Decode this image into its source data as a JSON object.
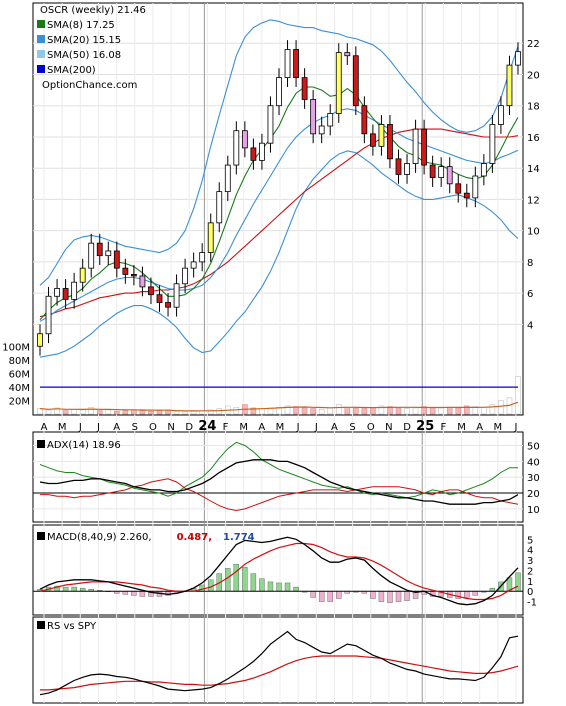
{
  "chart_data": [
    {
      "type": "line",
      "panel": "price",
      "legend": [
        {
          "label": "OSCR (weekly) 21.46",
          "color": "#000000"
        },
        {
          "label": "SMA(8) 17.25",
          "color": "#1a7a1a"
        },
        {
          "label": "SMA(20) 15.15",
          "color": "#3a8fd8"
        },
        {
          "label": "SMA(50) 16.08",
          "color": "#8ec8f0"
        },
        {
          "label": "SMA(200)",
          "color": "#0000cc"
        }
      ],
      "watermark": "OptionChance.com",
      "y_ticks": [
        "22",
        "20",
        "18",
        "16",
        "14",
        "12",
        "10",
        "8",
        "6",
        "4"
      ],
      "ylim": [
        3,
        24
      ],
      "x_labels": [
        "A",
        "M",
        "J",
        "J",
        "A",
        "S",
        "O",
        "N",
        "D",
        "24",
        "F",
        "M",
        "A",
        "M",
        "J",
        "J",
        "A",
        "S",
        "O",
        "N",
        "D",
        "25",
        "F",
        "M",
        "A",
        "M",
        "J"
      ],
      "close": [
        3.4,
        5.8,
        6.3,
        5.6,
        6.7,
        7.6,
        9.2,
        8.4,
        8.7,
        7.6,
        7.2,
        7.1,
        6.4,
        5.9,
        5.4,
        5.1,
        6.6,
        7.6,
        8.0,
        8.6,
        10.5,
        12.5,
        14.2,
        16.4,
        15.3,
        14.5,
        15.6,
        18.0,
        19.8,
        21.6,
        19.8,
        18.4,
        16.2,
        16.7,
        17.5,
        21.4,
        21.2,
        18.0,
        16.2,
        15.4,
        16.8,
        14.6,
        13.6,
        14.3,
        16.5,
        14.2,
        13.4,
        14.1,
        13.0,
        12.4,
        12.1,
        13.5,
        14.3,
        16.8,
        18.0,
        20.6,
        21.46
      ],
      "sma8": [
        4.3,
        4.9,
        5.4,
        5.7,
        5.9,
        6.3,
        6.9,
        7.3,
        7.8,
        8.0,
        7.9,
        7.7,
        7.3,
        6.8,
        6.3,
        5.8,
        5.8,
        5.9,
        6.3,
        6.9,
        7.9,
        9.3,
        10.8,
        12.3,
        13.5,
        14.5,
        15.2,
        15.9,
        16.7,
        17.9,
        18.8,
        19.2,
        19.2,
        19.0,
        18.6,
        18.7,
        19.1,
        18.7,
        17.9,
        17.2,
        16.6,
        16.0,
        15.4,
        15.0,
        14.8,
        14.4,
        14.3,
        14.2,
        13.9,
        13.6,
        13.4,
        13.3,
        13.5,
        14.2,
        15.2,
        16.3,
        17.25
      ],
      "sma20": [
        4.2,
        4.5,
        4.9,
        5.2,
        5.5,
        5.8,
        6.1,
        6.4,
        6.7,
        6.9,
        7.0,
        7.0,
        6.9,
        6.7,
        6.5,
        6.3,
        6.2,
        6.2,
        6.3,
        6.5,
        7.0,
        7.7,
        8.6,
        9.7,
        10.7,
        11.7,
        12.6,
        13.5,
        14.4,
        15.3,
        16.0,
        16.5,
        16.9,
        17.2,
        17.4,
        17.7,
        17.8,
        17.7,
        17.4,
        17.1,
        16.8,
        16.5,
        16.2,
        15.9,
        15.7,
        15.5,
        15.3,
        15.1,
        14.9,
        14.7,
        14.5,
        14.4,
        14.3,
        14.4,
        14.7,
        14.9,
        15.15
      ],
      "sma50": [
        4.5,
        4.6,
        4.8,
        5.0,
        5.1,
        5.3,
        5.5,
        5.7,
        5.8,
        5.9,
        6.0,
        6.0,
        6.1,
        6.1,
        6.2,
        6.2,
        6.3,
        6.4,
        6.6,
        6.9,
        7.2,
        7.6,
        8.0,
        8.5,
        9.0,
        9.5,
        10.0,
        10.5,
        11.0,
        11.5,
        12.0,
        12.5,
        12.9,
        13.3,
        13.7,
        14.1,
        14.5,
        14.9,
        15.3,
        15.6,
        15.9,
        16.1,
        16.3,
        16.4,
        16.5,
        16.5,
        16.5,
        16.5,
        16.4,
        16.3,
        16.2,
        16.1,
        16.0,
        16.0,
        16.0,
        16.0,
        16.08
      ],
      "bb_upper": [
        6.5,
        7.0,
        7.9,
        8.8,
        9.4,
        9.6,
        9.7,
        9.6,
        9.4,
        9.2,
        9.0,
        8.9,
        8.8,
        8.7,
        8.6,
        8.8,
        9.2,
        10.0,
        11.4,
        13.2,
        15.4,
        17.4,
        19.3,
        21.2,
        22.4,
        23.0,
        23.3,
        23.5,
        23.4,
        23.2,
        23.1,
        23.0,
        23.0,
        22.8,
        22.7,
        22.6,
        22.4,
        22.3,
        22.1,
        21.9,
        21.5,
        20.9,
        20.2,
        19.5,
        18.9,
        18.2,
        17.6,
        17.1,
        16.7,
        16.4,
        16.3,
        16.4,
        16.7,
        17.3,
        18.5,
        20.2,
        21.8
      ],
      "bb_lower": [
        1.9,
        2.0,
        2.1,
        2.3,
        2.6,
        3.0,
        3.4,
        3.9,
        4.3,
        4.7,
        5.0,
        5.2,
        5.2,
        5.0,
        4.7,
        4.3,
        3.8,
        3.1,
        2.5,
        2.2,
        2.3,
        2.9,
        3.5,
        4.2,
        4.8,
        5.6,
        6.4,
        7.4,
        8.6,
        10.0,
        11.4,
        12.5,
        13.3,
        13.9,
        14.5,
        14.9,
        15.1,
        15.0,
        14.6,
        14.2,
        13.7,
        13.3,
        12.9,
        12.5,
        12.2,
        12.0,
        12.0,
        12.1,
        12.2,
        12.3,
        12.1,
        11.9,
        11.6,
        11.2,
        10.7,
        10.0,
        9.5
      ],
      "y_lim_volume": [
        0,
        110
      ],
      "volume_ticks": [
        "100M",
        "80M",
        "60M",
        "40M",
        "20M"
      ],
      "volume": [
        8,
        6,
        9,
        5,
        7,
        6,
        10,
        5,
        6,
        4,
        5,
        6,
        5,
        4,
        5,
        6,
        4,
        3,
        4,
        5,
        6,
        8,
        12,
        10,
        14,
        9,
        8,
        9,
        10,
        12,
        11,
        9,
        8,
        7,
        9,
        14,
        10,
        9,
        8,
        10,
        12,
        11,
        9,
        8,
        9,
        11,
        10,
        9,
        10,
        9,
        12,
        11,
        10,
        14,
        20,
        24,
        56
      ]
    },
    {
      "type": "line",
      "panel": "ADX",
      "legend": [
        {
          "label": "ADX(14) 18.96",
          "color": "#000000"
        }
      ],
      "y_ticks": [
        "50",
        "40",
        "30",
        "20",
        "10"
      ],
      "ylim": [
        3,
        56
      ],
      "adx": [
        27,
        26,
        26,
        27,
        28,
        28,
        29,
        29,
        28,
        27,
        26,
        24,
        23,
        22,
        22,
        21,
        21,
        22,
        24,
        26,
        29,
        33,
        36,
        39,
        40,
        41,
        41,
        41,
        40,
        40,
        38,
        36,
        33,
        30,
        27,
        25,
        23,
        22,
        21,
        20,
        19,
        18,
        17,
        17,
        16,
        15,
        15,
        14,
        13,
        13,
        13,
        13,
        14,
        14,
        15,
        16,
        18.96
      ],
      "plus_di": [
        38,
        36,
        34,
        33,
        33,
        31,
        30,
        29,
        27,
        26,
        25,
        23,
        22,
        21,
        20,
        18,
        20,
        24,
        27,
        30,
        35,
        42,
        48,
        52,
        50,
        46,
        41,
        38,
        35,
        33,
        31,
        29,
        27,
        25,
        24,
        23,
        24,
        22,
        20,
        19,
        20,
        19,
        18,
        17,
        18,
        20,
        22,
        21,
        19,
        20,
        22,
        24,
        26,
        29,
        33,
        36,
        36
      ],
      "minus_di": [
        19,
        19,
        18,
        18,
        17,
        18,
        18,
        19,
        20,
        21,
        22,
        24,
        25,
        27,
        28,
        29,
        27,
        23,
        21,
        18,
        15,
        12,
        10,
        9,
        10,
        12,
        14,
        16,
        18,
        19,
        20,
        21,
        22,
        22,
        22,
        22,
        21,
        22,
        23,
        24,
        24,
        24,
        24,
        23,
        22,
        20,
        19,
        21,
        22,
        22,
        20,
        18,
        17,
        17,
        15,
        14,
        13
      ]
    },
    {
      "type": "line",
      "panel": "MACD",
      "legend": [
        {
          "label": "MACD(8,40,9) 2.260,",
          "color": "#000000"
        },
        {
          "label": "0.487,",
          "color": "#cc0000"
        },
        {
          "label": "1.774",
          "color": "#1f4fa0"
        }
      ],
      "y_ticks": [
        "5",
        "4",
        "3",
        "2",
        "1",
        "0",
        "-1"
      ],
      "ylim": [
        -2.0,
        5.9
      ],
      "macd": [
        0.2,
        0.6,
        0.9,
        1.0,
        1.1,
        1.1,
        1.1,
        1.0,
        0.9,
        0.7,
        0.5,
        0.3,
        0.1,
        -0.1,
        -0.2,
        -0.3,
        -0.2,
        0.0,
        0.3,
        0.8,
        1.5,
        2.5,
        3.5,
        4.5,
        4.9,
        4.8,
        4.7,
        4.8,
        5.0,
        5.2,
        5.0,
        4.5,
        3.9,
        3.2,
        2.8,
        2.8,
        3.1,
        3.2,
        3.0,
        2.2,
        1.5,
        0.9,
        0.5,
        0.1,
        -0.1,
        0.0,
        -0.4,
        -0.6,
        -0.9,
        -1.2,
        -1.3,
        -1.2,
        -0.9,
        -0.4,
        0.5,
        1.4,
        2.26
      ],
      "signal": [
        0.0,
        0.2,
        0.4,
        0.6,
        0.7,
        0.8,
        0.9,
        0.9,
        0.9,
        0.9,
        0.8,
        0.7,
        0.6,
        0.4,
        0.3,
        0.1,
        0.0,
        0.0,
        0.0,
        0.2,
        0.4,
        0.8,
        1.3,
        1.9,
        2.6,
        3.1,
        3.5,
        3.9,
        4.2,
        4.4,
        4.6,
        4.6,
        4.5,
        4.2,
        3.8,
        3.5,
        3.3,
        3.3,
        3.2,
        2.9,
        2.5,
        2.0,
        1.5,
        1.0,
        0.6,
        0.3,
        0.1,
        -0.1,
        -0.3,
        -0.5,
        -0.7,
        -0.8,
        -0.8,
        -0.7,
        -0.4,
        0.1,
        0.487
      ]
    },
    {
      "type": "line",
      "panel": "RS vs SPY",
      "legend": [
        {
          "label": "RS vs SPY",
          "color": "#000000"
        }
      ],
      "ylim": [
        0,
        100
      ],
      "rs": [
        8,
        10,
        14,
        20,
        26,
        30,
        33,
        34,
        33,
        31,
        30,
        28,
        25,
        22,
        19,
        15,
        14,
        13,
        14,
        15,
        17,
        22,
        28,
        35,
        42,
        50,
        60,
        72,
        80,
        88,
        78,
        74,
        68,
        62,
        60,
        66,
        72,
        70,
        64,
        58,
        54,
        48,
        44,
        40,
        38,
        34,
        32,
        30,
        28,
        28,
        27,
        26,
        30,
        42,
        56,
        80,
        82
      ],
      "rs_avg": [
        14,
        14,
        15,
        16,
        17,
        19,
        21,
        22,
        23,
        24,
        25,
        25,
        25,
        24,
        24,
        23,
        22,
        21,
        21,
        20,
        20,
        21,
        22,
        24,
        26,
        29,
        33,
        37,
        42,
        47,
        51,
        54,
        56,
        57,
        57,
        57,
        57,
        57,
        56,
        55,
        54,
        52,
        50,
        48,
        46,
        44,
        42,
        40,
        38,
        37,
        36,
        35,
        35,
        36,
        38,
        41,
        44
      ]
    }
  ]
}
